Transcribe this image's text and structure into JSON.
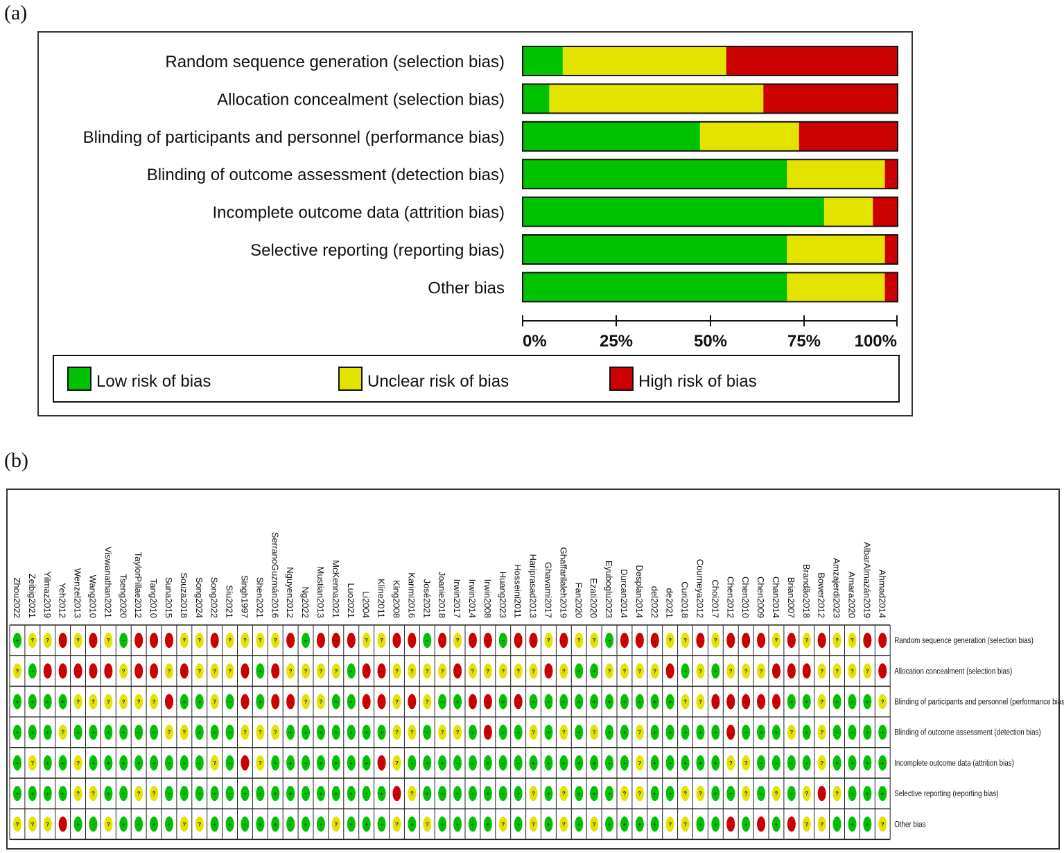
{
  "panel_labels": {
    "a": "(a)",
    "b": "(b)"
  },
  "colors": {
    "low": "#00c200",
    "unclear": "#e3e300",
    "high": "#cc0000"
  },
  "chart_data": [
    {
      "type": "bar",
      "stacked": true,
      "orientation": "horizontal",
      "categories": [
        "Random sequence generation (selection bias)",
        "Allocation concealment (selection bias)",
        "Blinding of participants and personnel (performance bias)",
        "Blinding of outcome assessment (detection bias)",
        "Incomplete outcome data (attrition bias)",
        "Selective reporting (reporting bias)",
        "Other bias"
      ],
      "series": [
        {
          "name": "Low risk of bias",
          "key": "low",
          "values": [
            10.7,
            7.1,
            47.3,
            70.5,
            80.4,
            70.5,
            70.5
          ]
        },
        {
          "name": "Unclear risk of bias",
          "key": "unclear",
          "values": [
            43.6,
            57.1,
            26.4,
            26.1,
            13.0,
            26.1,
            26.1
          ]
        },
        {
          "name": "High risk of bias",
          "key": "high",
          "values": [
            45.7,
            35.8,
            26.3,
            3.4,
            6.6,
            3.4,
            3.4
          ]
        }
      ],
      "xlim": [
        0,
        100
      ],
      "ticks": [
        "0%",
        "25%",
        "50%",
        "75%",
        "100%"
      ],
      "legend": [
        "Low risk of bias",
        "Unclear risk of bias",
        "High risk of bias"
      ],
      "legend_position": "bottom"
    },
    {
      "type": "table",
      "symbols": {
        "low": "+",
        "unclear": "?",
        "high": "-"
      },
      "studies": [
        "Zhou2022",
        "Zeibig2021",
        "Yilmaz2019",
        "Yeh2012",
        "Wenzel2013",
        "Wang2010",
        "Viswanathan2021",
        "Tseng2020",
        "TaylorPillae2012",
        "Tang2010",
        "Suna2015",
        "Souza2018",
        "Song2024",
        "Song2022",
        "Siu2021",
        "Singh1997",
        "Shen2021",
        "SerranoGuzmán2016",
        "Nguyen2012",
        "Ng2022",
        "Mustian2013",
        "McKenna2021",
        "Luo2021",
        "Li2004",
        "Kline2011",
        "King2008",
        "Karimi2016",
        "José2021",
        "Joanie2018",
        "Irwin2017",
        "Irwin2014",
        "Irwin2008",
        "Huang2023",
        "Hosseini2011",
        "Hariprasad2013",
        "Ghavami2017",
        "Ghaffarilaleh2019",
        "Fan2020",
        "Ezati2020",
        "Eyuboglu2023",
        "Durcan2014",
        "Desplan2014",
        "del2022",
        "de2021",
        "Curi2018",
        "Courneya2012",
        "Choi2017",
        "Chen2012",
        "Chen2010",
        "Chen2009",
        "Chan2014",
        "Brian2007",
        "Brandão2018",
        "Bower2012",
        "Amzajerdi2023",
        "Amara2020",
        "AlbarAlmazán2019",
        "Ahmad2014"
      ],
      "domains": [
        "Random sequence generation (selection bias)",
        "Allocation concealment (selection bias)",
        "Blinding of participants and personnel (performance bias)",
        "Blinding of outcome assessment (detection bias)",
        "Incomplete outcome data (attrition bias)",
        "Selective reporting (reporting bias)",
        "Other bias"
      ],
      "ratings": [
        [
          "L",
          "U",
          "U",
          "H",
          "U",
          "H",
          "U",
          "L",
          "H",
          "H",
          "H",
          "U",
          "U",
          "H",
          "U",
          "U",
          "U",
          "U",
          "H",
          "L",
          "H",
          "H",
          "H",
          "U",
          "U",
          "H",
          "H",
          "L",
          "H",
          "U",
          "H",
          "H",
          "L",
          "H",
          "H",
          "U",
          "H",
          "U",
          "U",
          "L",
          "H",
          "H",
          "H",
          "U",
          "U",
          "H",
          "U",
          "H",
          "H",
          "H",
          "U",
          "H",
          "U",
          "H",
          "U",
          "U",
          "H",
          "H"
        ],
        [
          "U",
          "L",
          "H",
          "H",
          "H",
          "H",
          "H",
          "U",
          "H",
          "H",
          "U",
          "H",
          "U",
          "U",
          "U",
          "H",
          "L",
          "H",
          "U",
          "U",
          "U",
          "U",
          "L",
          "H",
          "H",
          "U",
          "U",
          "U",
          "U",
          "H",
          "U",
          "U",
          "U",
          "U",
          "U",
          "H",
          "U",
          "L",
          "L",
          "U",
          "U",
          "U",
          "U",
          "H",
          "L",
          "U",
          "L",
          "U",
          "U",
          "U",
          "H",
          "H",
          "H",
          "U",
          "U",
          "U",
          "U",
          "H"
        ],
        [
          "L",
          "L",
          "L",
          "L",
          "U",
          "U",
          "U",
          "U",
          "U",
          "U",
          "H",
          "L",
          "L",
          "U",
          "L",
          "H",
          "L",
          "H",
          "H",
          "U",
          "U",
          "L",
          "L",
          "H",
          "H",
          "U",
          "H",
          "U",
          "L",
          "L",
          "H",
          "H",
          "L",
          "H",
          "L",
          "L",
          "L",
          "L",
          "L",
          "L",
          "L",
          "L",
          "L",
          "L",
          "U",
          "U",
          "H",
          "H",
          "H",
          "H",
          "H",
          "L",
          "L",
          "U",
          "L",
          "L",
          "L",
          "U"
        ],
        [
          "L",
          "L",
          "L",
          "U",
          "L",
          "L",
          "L",
          "L",
          "L",
          "L",
          "U",
          "U",
          "L",
          "L",
          "L",
          "U",
          "U",
          "U",
          "L",
          "L",
          "L",
          "L",
          "L",
          "L",
          "L",
          "U",
          "U",
          "L",
          "U",
          "U",
          "L",
          "H",
          "L",
          "L",
          "U",
          "L",
          "U",
          "L",
          "U",
          "L",
          "L",
          "U",
          "L",
          "L",
          "L",
          "L",
          "L",
          "H",
          "L",
          "L",
          "L",
          "U",
          "L",
          "U",
          "L",
          "L",
          "L",
          "L"
        ],
        [
          "L",
          "U",
          "L",
          "L",
          "U",
          "L",
          "L",
          "L",
          "L",
          "L",
          "L",
          "L",
          "L",
          "U",
          "L",
          "H",
          "U",
          "L",
          "L",
          "L",
          "L",
          "L",
          "L",
          "L",
          "H",
          "U",
          "L",
          "L",
          "L",
          "L",
          "L",
          "L",
          "L",
          "L",
          "L",
          "L",
          "L",
          "L",
          "L",
          "L",
          "L",
          "U",
          "L",
          "L",
          "L",
          "L",
          "L",
          "U",
          "U",
          "L",
          "L",
          "L",
          "L",
          "U",
          "L",
          "L",
          "L",
          "L"
        ],
        [
          "L",
          "L",
          "L",
          "L",
          "U",
          "U",
          "L",
          "L",
          "U",
          "U",
          "L",
          "L",
          "L",
          "L",
          "L",
          "L",
          "L",
          "L",
          "L",
          "L",
          "L",
          "L",
          "L",
          "L",
          "L",
          "H",
          "U",
          "L",
          "L",
          "L",
          "L",
          "L",
          "L",
          "L",
          "U",
          "L",
          "U",
          "L",
          "L",
          "L",
          "U",
          "U",
          "L",
          "L",
          "U",
          "U",
          "L",
          "L",
          "U",
          "L",
          "U",
          "L",
          "U",
          "H",
          "U",
          "L",
          "L",
          "L"
        ],
        [
          "U",
          "U",
          "U",
          "H",
          "L",
          "L",
          "U",
          "L",
          "L",
          "L",
          "L",
          "U",
          "U",
          "L",
          "L",
          "L",
          "L",
          "L",
          "L",
          "L",
          "L",
          "U",
          "L",
          "L",
          "L",
          "U",
          "L",
          "U",
          "L",
          "L",
          "L",
          "L",
          "U",
          "L",
          "U",
          "L",
          "U",
          "L",
          "U",
          "L",
          "L",
          "L",
          "L",
          "U",
          "U",
          "L",
          "L",
          "H",
          "L",
          "H",
          "L",
          "H",
          "U",
          "U",
          "L",
          "L",
          "L",
          "U"
        ]
      ]
    }
  ]
}
